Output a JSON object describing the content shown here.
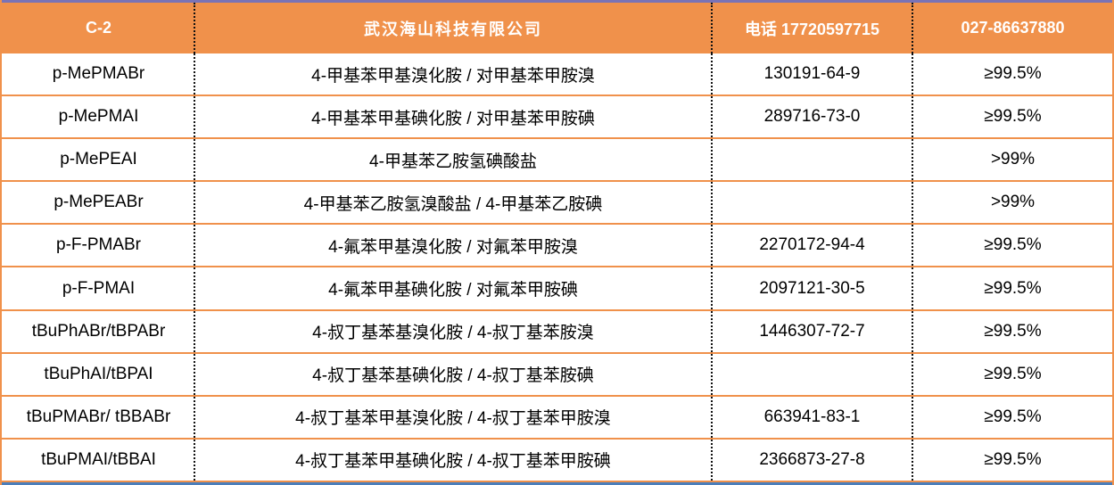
{
  "header": {
    "code": "C-2",
    "company": "武汉海山科技有限公司",
    "phone": "电话 17720597715",
    "landline": "027-86637880"
  },
  "colors": {
    "accent_orange": "#F0914B",
    "top_rule_purple": "#7A73B6",
    "bottom_rule_blue": "#4A7EBB",
    "separator_black": "#111111",
    "header_text": "#ffffff",
    "body_text": "#000000"
  },
  "rows": [
    {
      "name": "p-MePMABr",
      "chinese": "4-甲基苯甲基溴化胺 / 对甲基苯甲胺溴",
      "cas": "130191-64-9",
      "purity": "≥99.5%"
    },
    {
      "name": "p-MePMAI",
      "chinese": "4-甲基苯甲基碘化胺 / 对甲基苯甲胺碘",
      "cas": "289716-73-0",
      "purity": "≥99.5%"
    },
    {
      "name": "p-MePEAI",
      "chinese": "4-甲基苯乙胺氢碘酸盐",
      "cas": "",
      "purity": ">99%"
    },
    {
      "name": "p-MePEABr",
      "chinese": "4-甲基苯乙胺氢溴酸盐 / 4-甲基苯乙胺碘",
      "cas": "",
      "purity": ">99%"
    },
    {
      "name": "p-F-PMABr",
      "chinese": "4-氟苯甲基溴化胺 / 对氟苯甲胺溴",
      "cas": "2270172-94-4",
      "purity": "≥99.5%"
    },
    {
      "name": "p-F-PMAI",
      "chinese": "4-氟苯甲基碘化胺 / 对氟苯甲胺碘",
      "cas": "2097121-30-5",
      "purity": "≥99.5%"
    },
    {
      "name": "tBuPhABr/tBPABr",
      "chinese": "4-叔丁基苯基溴化胺 / 4-叔丁基苯胺溴",
      "cas": "1446307-72-7",
      "purity": "≥99.5%"
    },
    {
      "name": "tBuPhAI/tBPAI",
      "chinese": "4-叔丁基苯基碘化胺 / 4-叔丁基苯胺碘",
      "cas": "",
      "purity": "≥99.5%"
    },
    {
      "name": "tBuPMABr/ tBBABr",
      "chinese": "4-叔丁基苯甲基溴化胺 / 4-叔丁基苯甲胺溴",
      "cas": "663941-83-1",
      "purity": "≥99.5%"
    },
    {
      "name": "tBuPMAI/tBBAI",
      "chinese": "4-叔丁基苯甲基碘化胺 / 4-叔丁基苯甲胺碘",
      "cas": "2366873-27-8",
      "purity": "≥99.5%"
    }
  ]
}
